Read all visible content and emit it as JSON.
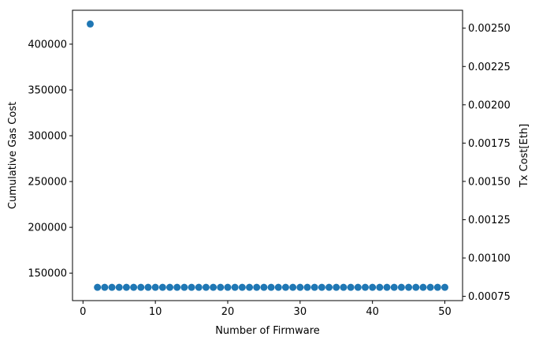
{
  "chart_data": {
    "type": "scatter",
    "title": "",
    "xlabel": "Number of Firmware",
    "ylabel": "Cumulative Gas Cost",
    "y2label": "Tx Cost[Eth]",
    "xlim": [
      -1.45,
      52.45
    ],
    "ylim": [
      120000,
      437000
    ],
    "y2lim": [
      0.000722,
      0.002617
    ],
    "x_ticks": [
      0,
      10,
      20,
      30,
      40,
      50
    ],
    "y_ticks": [
      150000,
      200000,
      250000,
      300000,
      350000,
      400000
    ],
    "y2_ticks": [
      0.00075,
      0.001,
      0.00125,
      0.0015,
      0.00175,
      0.002,
      0.00225,
      0.0025
    ],
    "y2_tick_labels": [
      "0.00075",
      "0.00100",
      "0.00125",
      "0.00150",
      "0.00175",
      "0.00200",
      "0.00225",
      "0.00250"
    ],
    "marker_color": "#1f77b4",
    "grid": false,
    "series": [
      {
        "x": [
          1,
          2,
          3,
          4,
          5,
          6,
          7,
          8,
          9,
          10,
          11,
          12,
          13,
          14,
          15,
          16,
          17,
          18,
          19,
          20,
          21,
          22,
          23,
          24,
          25,
          26,
          27,
          28,
          29,
          30,
          31,
          32,
          33,
          34,
          35,
          36,
          37,
          38,
          39,
          40,
          41,
          42,
          43,
          44,
          45,
          46,
          47,
          48,
          49,
          50
        ],
        "y": [
          422000,
          134500,
          134500,
          134500,
          134500,
          134500,
          134500,
          134500,
          134500,
          134500,
          134500,
          134500,
          134500,
          134500,
          134500,
          134500,
          134500,
          134500,
          134500,
          134500,
          134500,
          134500,
          134500,
          134500,
          134500,
          134500,
          134500,
          134500,
          134500,
          134500,
          134500,
          134500,
          134500,
          134500,
          134500,
          134500,
          134500,
          134500,
          134500,
          134500,
          134500,
          134500,
          134500,
          134500,
          134500,
          134500,
          134500,
          134500,
          134500,
          134500
        ]
      }
    ]
  }
}
